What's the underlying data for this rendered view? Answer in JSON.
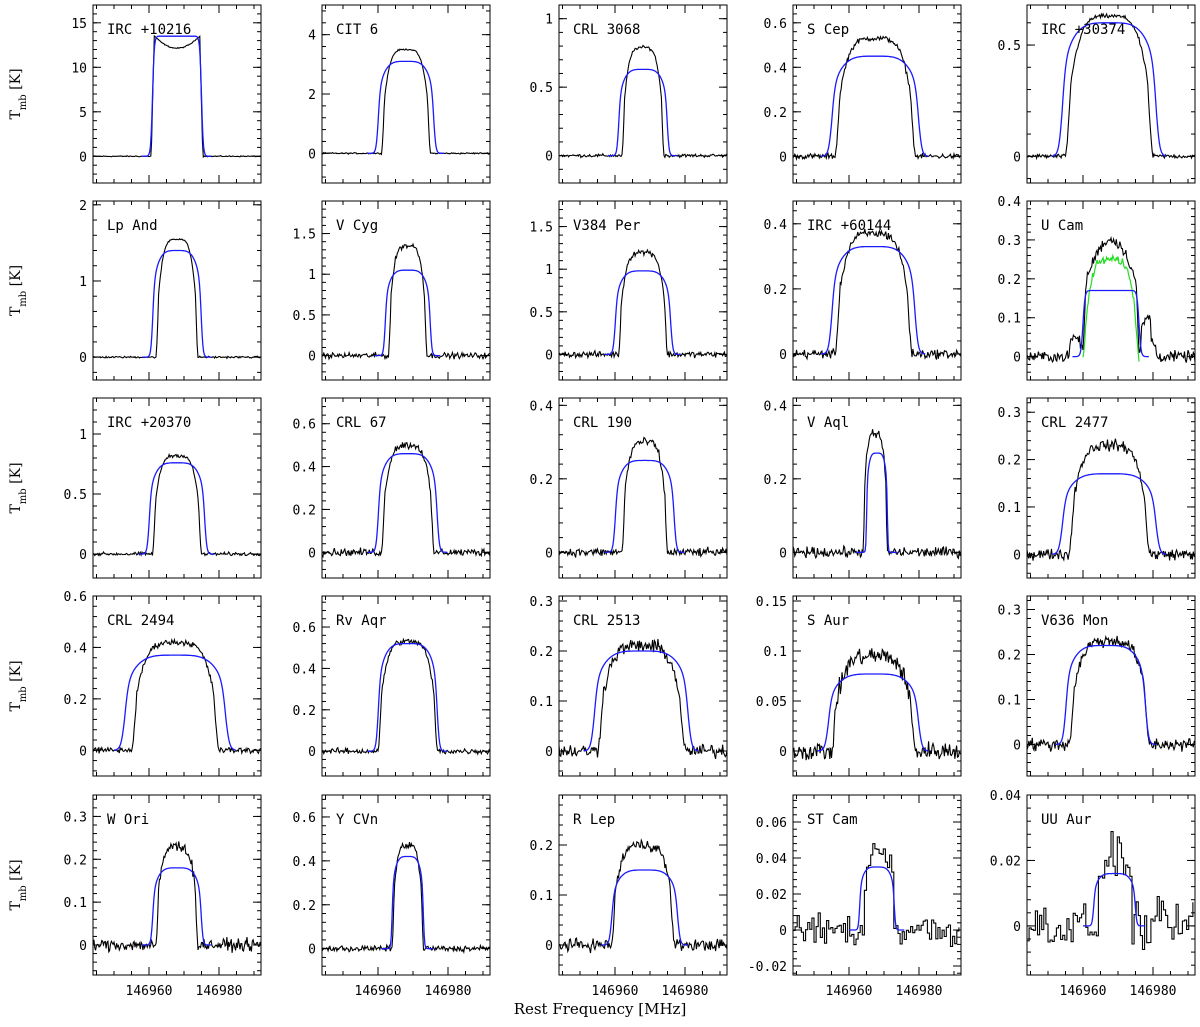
{
  "figure": {
    "ylabel_main": "T",
    "ylabel_sub": "mb",
    "ylabel_unit": " [K]",
    "xlabel": "Rest Frequency [MHz]"
  },
  "chart_data": {
    "type": "line",
    "layout": "5x5 grid of spectra",
    "xlim": [
      146944,
      146992
    ],
    "xticks": [
      146960,
      146980
    ],
    "series_names": [
      "observed spectrum (black)",
      "model fit (blue)",
      "scaled component (green, U Cam only)"
    ],
    "colors": {
      "obs": "#000000",
      "model": "#1a1aff",
      "extra": "#22dd22"
    },
    "panels": [
      {
        "name": "IRC +10216",
        "ylim": [
          -3,
          17
        ],
        "yticks": [
          0,
          5,
          10,
          15
        ],
        "yticklabels": [
          "0",
          "5",
          "10",
          "15"
        ],
        "peak": 13.5,
        "v1": 146961,
        "v2": 146975,
        "shape": "horn",
        "model_amp": 13.5,
        "m1": 146961,
        "m2": 146975,
        "noise": 0.05,
        "step": false
      },
      {
        "name": "CIT 6",
        "ylim": [
          -1,
          5
        ],
        "yticks": [
          0,
          2,
          4
        ],
        "yticklabels": [
          "0",
          "2",
          "4"
        ],
        "peak": 3.5,
        "v1": 146961,
        "v2": 146975,
        "shape": "parabolic",
        "model_amp": 3.1,
        "m1": 146960,
        "m2": 146976,
        "noise": 0.02,
        "step": false
      },
      {
        "name": "CRL 3068",
        "ylim": [
          -0.2,
          1.1
        ],
        "yticks": [
          0,
          0.5,
          1
        ],
        "yticklabels": [
          "0",
          "0.5",
          "1"
        ],
        "peak": 0.79,
        "v1": 146962,
        "v2": 146974,
        "shape": "parabolic",
        "model_amp": 0.63,
        "m1": 146961,
        "m2": 146975,
        "noise": 0.01,
        "step": false
      },
      {
        "name": "S Cep",
        "ylim": [
          -0.12,
          0.68
        ],
        "yticks": [
          0,
          0.2,
          0.4,
          0.6
        ],
        "yticklabels": [
          "0",
          "0.2",
          "0.4",
          "0.6"
        ],
        "peak": 0.53,
        "v1": 146956,
        "v2": 146979,
        "shape": "parabolic",
        "model_amp": 0.45,
        "m1": 146955,
        "m2": 146980,
        "noise": 0.01,
        "step": false
      },
      {
        "name": "IRC +30374",
        "ylim": [
          -0.12,
          0.68
        ],
        "yticks": [
          0,
          0.5
        ],
        "yticklabels": [
          "0",
          "0.5"
        ],
        "peak": 0.63,
        "v1": 146955,
        "v2": 146980,
        "shape": "parabolic",
        "model_amp": 0.6,
        "m1": 146954,
        "m2": 146981,
        "noise": 0.008,
        "step": false
      },
      {
        "name": "Lp And",
        "ylim": [
          -0.3,
          2.05
        ],
        "yticks": [
          0,
          1,
          2
        ],
        "yticklabels": [
          "0",
          "1",
          "2"
        ],
        "peak": 1.55,
        "v1": 146962,
        "v2": 146974,
        "shape": "parabolic",
        "model_amp": 1.4,
        "m1": 146961,
        "m2": 146975,
        "noise": 0.01,
        "step": false
      },
      {
        "name": "V Cyg",
        "ylim": [
          -0.3,
          1.9
        ],
        "yticks": [
          0,
          0.5,
          1,
          1.5
        ],
        "yticklabels": [
          "0",
          "0.5",
          "1",
          "1.5"
        ],
        "peak": 1.35,
        "v1": 146963,
        "v2": 146974,
        "shape": "parabolic",
        "model_amp": 1.05,
        "m1": 146962,
        "m2": 146975,
        "noise": 0.03,
        "step": false
      },
      {
        "name": "V384 Per",
        "ylim": [
          -0.3,
          1.8
        ],
        "yticks": [
          0,
          0.5,
          1,
          1.5
        ],
        "yticklabels": [
          "0",
          "0.5",
          "1",
          "1.5"
        ],
        "peak": 1.2,
        "v1": 146961,
        "v2": 146975,
        "shape": "parabolic",
        "model_amp": 0.98,
        "m1": 146960,
        "m2": 146976,
        "noise": 0.03,
        "step": false
      },
      {
        "name": "IRC +60144",
        "ylim": [
          -0.08,
          0.47
        ],
        "yticks": [
          0,
          0.2,
          0.4
        ],
        "yticklabels": [
          "0",
          "0.2",
          "0.4"
        ],
        "peak": 0.37,
        "v1": 146956,
        "v2": 146978,
        "shape": "parabolic",
        "model_amp": 0.33,
        "m1": 146955,
        "m2": 146979,
        "noise": 0.012,
        "step": false
      },
      {
        "name": "U Cam",
        "ylim": [
          -0.06,
          0.4
        ],
        "yticks": [
          0,
          0.1,
          0.2,
          0.3,
          0.4
        ],
        "yticklabels": [
          "0",
          "0.1",
          "0.2",
          "0.3",
          "0.4"
        ],
        "peak": 0.3,
        "v1": 146960,
        "v2": 146976,
        "shape": "ucam",
        "model_amp": 0.17,
        "m1": 146960,
        "m2": 146976,
        "noise": 0.012,
        "step": false
      },
      {
        "name": "IRC +20370",
        "ylim": [
          -0.2,
          1.3
        ],
        "yticks": [
          0,
          0.5,
          1
        ],
        "yticklabels": [
          "0",
          "0.5",
          "1"
        ],
        "peak": 0.82,
        "v1": 146961,
        "v2": 146975,
        "shape": "parabolic",
        "model_amp": 0.76,
        "m1": 146960,
        "m2": 146976,
        "noise": 0.012,
        "step": false
      },
      {
        "name": "CRL 67",
        "ylim": [
          -0.12,
          0.72
        ],
        "yticks": [
          0,
          0.2,
          0.4,
          0.6
        ],
        "yticklabels": [
          "0",
          "0.2",
          "0.4",
          "0.6"
        ],
        "peak": 0.5,
        "v1": 146961,
        "v2": 146976,
        "shape": "parabolic",
        "model_amp": 0.46,
        "m1": 146960,
        "m2": 146977,
        "noise": 0.015,
        "step": false
      },
      {
        "name": "CRL 190",
        "ylim": [
          -0.07,
          0.42
        ],
        "yticks": [
          0,
          0.2,
          0.4
        ],
        "yticklabels": [
          "0",
          "0.2",
          "0.4"
        ],
        "peak": 0.3,
        "v1": 146962,
        "v2": 146975,
        "shape": "parabolic",
        "model_amp": 0.25,
        "m1": 146960,
        "m2": 146977,
        "noise": 0.01,
        "step": false
      },
      {
        "name": "V Aql",
        "ylim": [
          -0.07,
          0.42
        ],
        "yticks": [
          0,
          0.2,
          0.4
        ],
        "yticklabels": [
          "0",
          "0.2",
          "0.4"
        ],
        "peak": 0.32,
        "v1": 146964,
        "v2": 146971,
        "shape": "parabolic",
        "model_amp": 0.27,
        "m1": 146965,
        "m2": 146971,
        "noise": 0.012,
        "step": false
      },
      {
        "name": "CRL 2477",
        "ylim": [
          -0.05,
          0.33
        ],
        "yticks": [
          0,
          0.1,
          0.2,
          0.3
        ],
        "yticklabels": [
          "0",
          "0.1",
          "0.2",
          "0.3"
        ],
        "peak": 0.23,
        "v1": 146956,
        "v2": 146979,
        "shape": "parabolic",
        "model_amp": 0.17,
        "m1": 146954,
        "m2": 146981,
        "noise": 0.01,
        "step": false
      },
      {
        "name": "CRL 2494",
        "ylim": [
          -0.1,
          0.6
        ],
        "yticks": [
          0,
          0.2,
          0.4,
          0.6
        ],
        "yticklabels": [
          "0",
          "0.2",
          "0.4",
          "0.6"
        ],
        "peak": 0.42,
        "v1": 146955,
        "v2": 146980,
        "shape": "parabolic",
        "model_amp": 0.37,
        "m1": 146953,
        "m2": 146982,
        "noise": 0.01,
        "step": false
      },
      {
        "name": "Rv Aqr",
        "ylim": [
          -0.12,
          0.75
        ],
        "yticks": [
          0,
          0.2,
          0.4,
          0.6
        ],
        "yticklabels": [
          "0",
          "0.2",
          "0.4",
          "0.6"
        ],
        "peak": 0.53,
        "v1": 146960,
        "v2": 146977,
        "shape": "parabolic",
        "model_amp": 0.52,
        "m1": 146960,
        "m2": 146977,
        "noise": 0.012,
        "step": false
      },
      {
        "name": "CRL 2513",
        "ylim": [
          -0.05,
          0.31
        ],
        "yticks": [
          0,
          0.1,
          0.2,
          0.3
        ],
        "yticklabels": [
          "0",
          "0.1",
          "0.2",
          "0.3"
        ],
        "peak": 0.21,
        "v1": 146955,
        "v2": 146980,
        "shape": "parabolic",
        "model_amp": 0.2,
        "m1": 146954,
        "m2": 146981,
        "noise": 0.012,
        "step": false
      },
      {
        "name": "S Aur",
        "ylim": [
          -0.025,
          0.155
        ],
        "yticks": [
          0,
          0.05,
          0.1,
          0.15
        ],
        "yticklabels": [
          "0",
          "0.05",
          "0.1",
          "0.15"
        ],
        "peak": 0.095,
        "v1": 146955,
        "v2": 146979,
        "shape": "parabolic",
        "model_amp": 0.077,
        "m1": 146954,
        "m2": 146980,
        "noise": 0.008,
        "step": false
      },
      {
        "name": "V636 Mon",
        "ylim": [
          -0.07,
          0.33
        ],
        "yticks": [
          0,
          0.1,
          0.2,
          0.3
        ],
        "yticklabels": [
          "0",
          "0.1",
          "0.2",
          "0.3"
        ],
        "peak": 0.23,
        "v1": 146956,
        "v2": 146979,
        "shape": "parabolic",
        "model_amp": 0.22,
        "m1": 146955,
        "m2": 146978,
        "noise": 0.012,
        "step": false
      },
      {
        "name": "W Ori",
        "ylim": [
          -0.07,
          0.35
        ],
        "yticks": [
          0,
          0.1,
          0.2,
          0.3
        ],
        "yticklabels": [
          "0",
          "0.1",
          "0.2",
          "0.3"
        ],
        "peak": 0.23,
        "v1": 146962,
        "v2": 146974,
        "shape": "parabolic",
        "model_amp": 0.18,
        "m1": 146961,
        "m2": 146975,
        "noise": 0.012,
        "step": false
      },
      {
        "name": "Y CVn",
        "ylim": [
          -0.12,
          0.7
        ],
        "yticks": [
          0,
          0.2,
          0.4,
          0.6
        ],
        "yticklabels": [
          "0",
          "0.2",
          "0.4",
          "0.6"
        ],
        "peak": 0.47,
        "v1": 146964,
        "v2": 146973,
        "shape": "parabolic",
        "model_amp": 0.42,
        "m1": 146964,
        "m2": 146973,
        "noise": 0.012,
        "step": false
      },
      {
        "name": "R Lep",
        "ylim": [
          -0.06,
          0.3
        ],
        "yticks": [
          0,
          0.1,
          0.2
        ],
        "yticklabels": [
          "0",
          "0.1",
          "0.2"
        ],
        "peak": 0.2,
        "v1": 146959,
        "v2": 146977,
        "shape": "parabolic",
        "model_amp": 0.15,
        "m1": 146959,
        "m2": 146978,
        "noise": 0.01,
        "step": false
      },
      {
        "name": "ST Cam",
        "ylim": [
          -0.025,
          0.075
        ],
        "yticks": [
          -0.02,
          0,
          0.02,
          0.04,
          0.06
        ],
        "yticklabels": [
          "-0.02",
          "0",
          "0.02",
          "0.04",
          "0.06"
        ],
        "peak": 0.045,
        "v1": 146964,
        "v2": 146973,
        "shape": "parabolic",
        "model_amp": 0.035,
        "m1": 146963,
        "m2": 146973,
        "noise": 0.008,
        "step": true
      },
      {
        "name": "UU Aur",
        "ylim": [
          -0.015,
          0.04
        ],
        "yticks": [
          0,
          0.02,
          0.04
        ],
        "yticklabels": [
          "0",
          "0.02",
          "0.04"
        ],
        "peak": 0.022,
        "v1": 146964,
        "v2": 146974,
        "shape": "parabolic",
        "model_amp": 0.016,
        "m1": 146963,
        "m2": 146975,
        "noise": 0.006,
        "step": true
      }
    ]
  }
}
